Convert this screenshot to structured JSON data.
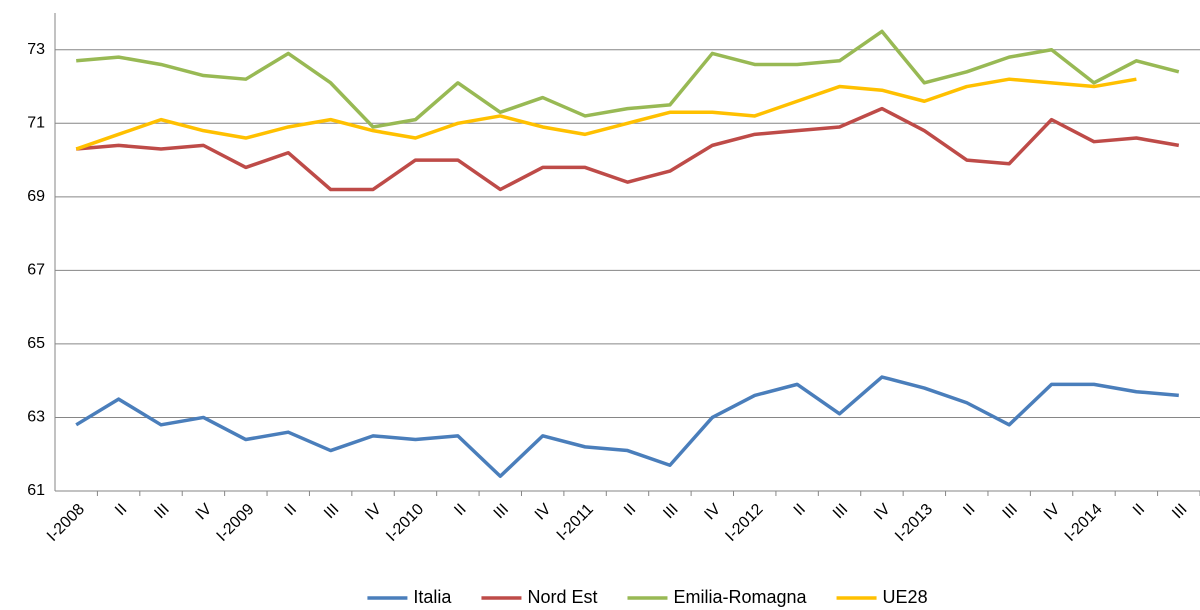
{
  "chart_data": {
    "type": "line",
    "categories": [
      "I-2008",
      "II",
      "III",
      "IV",
      "I-2009",
      "II",
      "III",
      "IV",
      "I-2010",
      "II",
      "III",
      "IV",
      "I-2011",
      "II",
      "III",
      "IV",
      "I-2012",
      "II",
      "III",
      "IV",
      "I-2013",
      "II",
      "III",
      "IV",
      "I-2014",
      "II",
      "III"
    ],
    "series": [
      {
        "name": "Italia",
        "color": "#4a7ebb",
        "values": [
          62.8,
          63.5,
          62.8,
          63.0,
          62.4,
          62.6,
          62.1,
          62.5,
          62.4,
          62.5,
          61.4,
          62.5,
          62.2,
          62.1,
          61.7,
          63.0,
          63.6,
          63.9,
          63.1,
          64.1,
          63.8,
          63.4,
          62.8,
          63.9,
          63.9,
          63.7,
          63.6
        ]
      },
      {
        "name": "Nord Est",
        "color": "#be4b48",
        "values": [
          70.3,
          70.4,
          70.3,
          70.4,
          69.8,
          70.2,
          69.2,
          69.2,
          70.0,
          70.0,
          69.2,
          69.8,
          69.8,
          69.4,
          69.7,
          70.4,
          70.7,
          70.8,
          70.9,
          71.4,
          70.8,
          70.0,
          69.9,
          71.1,
          70.5,
          70.6,
          70.4
        ]
      },
      {
        "name": "Emilia-Romagna",
        "color": "#98b954",
        "values": [
          72.7,
          72.8,
          72.6,
          72.3,
          72.2,
          72.9,
          72.1,
          70.9,
          71.1,
          72.1,
          71.3,
          71.7,
          71.2,
          71.4,
          71.5,
          72.9,
          72.6,
          72.6,
          72.7,
          73.5,
          72.1,
          72.4,
          72.8,
          73.0,
          72.1,
          72.7,
          72.4
        ]
      },
      {
        "name": "UE28",
        "color": "#ffc000",
        "values": [
          70.3,
          70.7,
          71.1,
          70.8,
          70.6,
          70.9,
          71.1,
          70.8,
          70.6,
          71.0,
          71.2,
          70.9,
          70.7,
          71.0,
          71.3,
          71.3,
          71.2,
          71.6,
          72.0,
          71.9,
          71.6,
          72.0,
          72.2,
          72.1,
          72.0,
          72.2,
          null
        ]
      }
    ],
    "ylim": [
      61,
      74
    ],
    "yticks": [
      61,
      63,
      65,
      67,
      69,
      71,
      73
    ],
    "grid": true,
    "legend": "bottom"
  }
}
